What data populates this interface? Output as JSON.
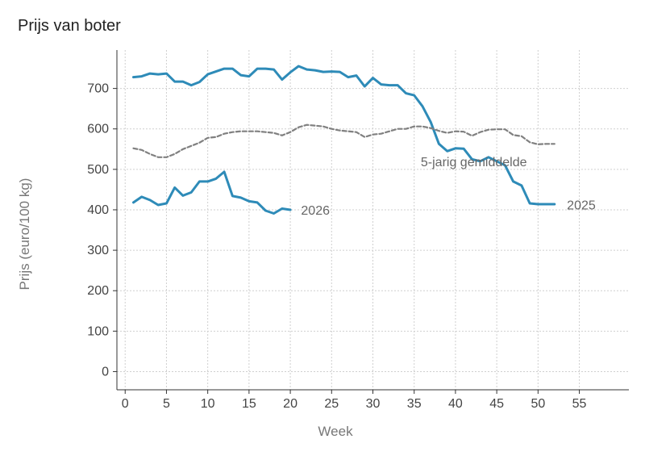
{
  "chart_data": {
    "type": "line",
    "title": "Prijs van boter",
    "xlabel": "Week",
    "ylabel": "Prijs (euro/100 kg)",
    "xlim": [
      -1,
      61
    ],
    "ylim": [
      -45,
      795
    ],
    "xticks": [
      0,
      5,
      10,
      15,
      20,
      25,
      30,
      35,
      40,
      45,
      50,
      55
    ],
    "yticks": [
      0,
      100,
      200,
      300,
      400,
      500,
      600,
      700
    ],
    "grid": true,
    "series": [
      {
        "name": "2025",
        "style": "solid",
        "color": "#2e8bb8",
        "x": [
          1,
          2,
          3,
          4,
          5,
          6,
          7,
          8,
          9,
          10,
          11,
          12,
          13,
          14,
          15,
          16,
          17,
          18,
          19,
          20,
          21,
          22,
          23,
          24,
          25,
          26,
          27,
          28,
          29,
          30,
          31,
          32,
          33,
          34,
          35,
          36,
          37,
          38,
          39,
          40,
          41,
          42,
          43,
          44,
          45,
          46,
          47,
          48,
          49,
          50,
          51,
          52
        ],
        "y": [
          728,
          730,
          737,
          735,
          737,
          717,
          717,
          708,
          716,
          735,
          742,
          749,
          749,
          733,
          730,
          749,
          749,
          747,
          722,
          740,
          755,
          747,
          745,
          741,
          742,
          741,
          728,
          732,
          705,
          726,
          710,
          708,
          708,
          688,
          683,
          656,
          617,
          563,
          545,
          552,
          551,
          525,
          520,
          530,
          520,
          510,
          470,
          460,
          416,
          414,
          414,
          414
        ]
      },
      {
        "name": "5-jarig gemiddelde",
        "style": "dashed",
        "color": "#808080",
        "x": [
          1,
          2,
          3,
          4,
          5,
          6,
          7,
          8,
          9,
          10,
          11,
          12,
          13,
          14,
          15,
          16,
          17,
          18,
          19,
          20,
          21,
          22,
          23,
          24,
          25,
          26,
          27,
          28,
          29,
          30,
          31,
          32,
          33,
          34,
          35,
          36,
          37,
          38,
          39,
          40,
          41,
          42,
          43,
          44,
          45,
          46,
          47,
          48,
          49,
          50,
          51,
          52
        ],
        "y": [
          552,
          548,
          538,
          530,
          530,
          538,
          550,
          558,
          566,
          578,
          580,
          588,
          592,
          594,
          594,
          594,
          592,
          590,
          584,
          592,
          604,
          610,
          608,
          606,
          600,
          596,
          594,
          592,
          580,
          586,
          588,
          594,
          600,
          600,
          606,
          606,
          602,
          595,
          590,
          594,
          593,
          583,
          592,
          598,
          599,
          599,
          585,
          582,
          567,
          562,
          563,
          563
        ]
      },
      {
        "name": "2026",
        "style": "solid",
        "color": "#2e8bb8",
        "x": [
          1,
          2,
          3,
          4,
          5,
          6,
          7,
          8,
          9,
          10,
          11,
          12,
          13,
          14,
          15,
          16,
          17,
          18,
          19,
          20
        ],
        "y": [
          418,
          432,
          424,
          412,
          416,
          455,
          435,
          443,
          470,
          470,
          477,
          494,
          434,
          430,
          421,
          418,
          398,
          391,
          403,
          400
        ]
      }
    ],
    "annotations": [
      {
        "text": "2026",
        "x": 21.3,
        "y": 400
      },
      {
        "text": "5-jarig gemiddelde",
        "x": 35.8,
        "y": 520
      },
      {
        "text": "2025",
        "x": 53.5,
        "y": 413
      }
    ]
  }
}
